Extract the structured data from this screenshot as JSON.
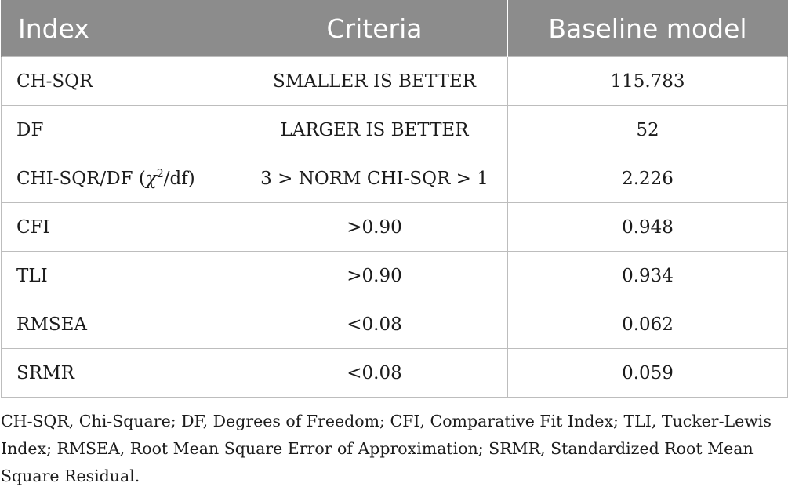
{
  "table": {
    "headers": [
      "Index",
      "Criteria",
      "Baseline model"
    ],
    "rows": [
      {
        "index": "CH-SQR",
        "criteria": "SMALLER IS BETTER",
        "baseline": "115.783"
      },
      {
        "index": "DF",
        "criteria": "LARGER IS BETTER",
        "baseline": "52"
      },
      {
        "index_prefix": "CHI-SQR/DF (",
        "index_chi": "χ",
        "index_sup": "2",
        "index_suffix": "/df)",
        "criteria": "3 > NORM CHI-SQR > 1",
        "baseline": "2.226"
      },
      {
        "index": "CFI",
        "criteria": ">0.90",
        "baseline": "0.948"
      },
      {
        "index": "TLI",
        "criteria": ">0.90",
        "baseline": "0.934"
      },
      {
        "index": "RMSEA",
        "criteria": "<0.08",
        "baseline": "0.062"
      },
      {
        "index": "SRMR",
        "criteria": "<0.08",
        "baseline": "0.059"
      }
    ]
  },
  "footnote": "CH-SQR, Chi-Square; DF, Degrees of Freedom; CFI, Comparative Fit Index; TLI, Tucker-Lewis Index; RMSEA, Root Mean Square Error of Approximation; SRMR, Standardized Root Mean Square Residual.",
  "colors": {
    "header_bg": "#8c8c8c",
    "header_text": "#ffffff",
    "grid": "#bdbdbd",
    "body_text": "#1c1c1c"
  }
}
